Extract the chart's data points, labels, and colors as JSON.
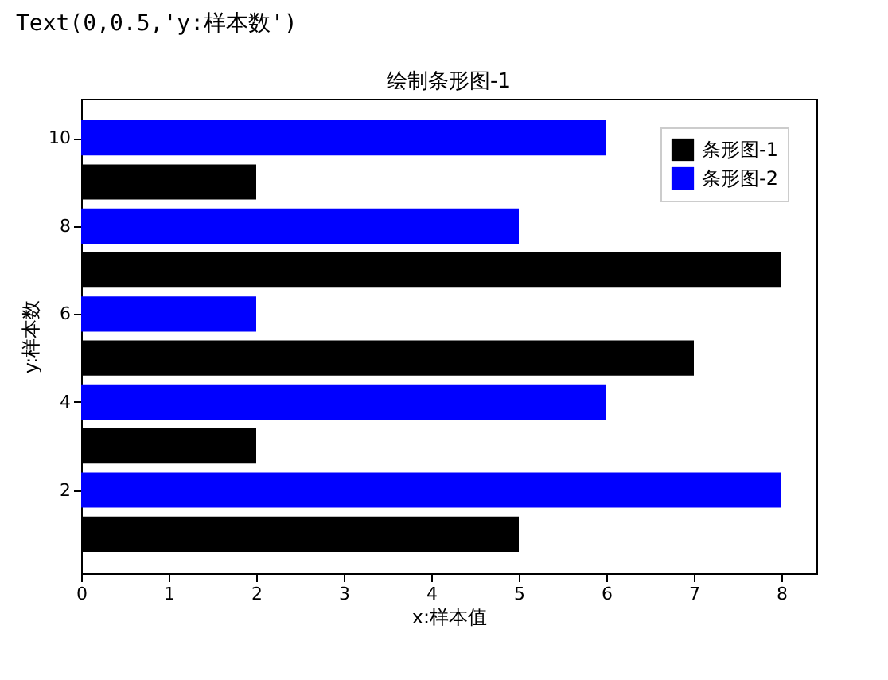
{
  "chart_data": {
    "type": "bar",
    "orientation": "horizontal",
    "title": "绘制条形图-1",
    "xlabel": "x:样本值",
    "ylabel": "y:样本数",
    "annotations": [
      "Text(0,0.5,'y:样本数')"
    ],
    "series": [
      {
        "name": "条形图-1",
        "color": "#000000",
        "x": [
          1,
          3,
          5,
          7,
          9
        ],
        "values": [
          5,
          2,
          7,
          8,
          2
        ]
      },
      {
        "name": "条形图-2",
        "color": "#0000ff",
        "x": [
          2,
          4,
          6,
          8,
          10
        ],
        "values": [
          8,
          6,
          2,
          5,
          6
        ]
      }
    ],
    "xlim": [
      0,
      8.4
    ],
    "xticks": [
      0,
      1,
      2,
      3,
      4,
      5,
      6,
      7,
      8
    ],
    "ylim": [
      0.11,
      10.89
    ],
    "yticks": [
      2,
      4,
      6,
      8,
      10
    ],
    "grid": false,
    "legend": "top right"
  }
}
